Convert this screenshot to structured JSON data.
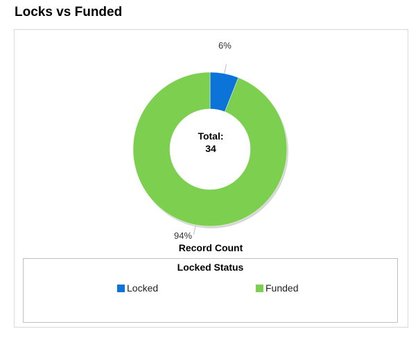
{
  "page": {
    "title": "Locks vs Funded"
  },
  "colors": {
    "locked": "#0c74d8",
    "funded": "#7ccf4f"
  },
  "chart_data": {
    "type": "pie",
    "subtype": "donut",
    "categories": [
      "Locked",
      "Funded"
    ],
    "values": [
      6,
      94
    ],
    "value_unit": "%",
    "data_labels": [
      "6%",
      "94%"
    ],
    "center_label": "Total:",
    "center_value": "34",
    "measure_label": "Record Count",
    "legend": {
      "title": "Locked Status",
      "position": "bottom",
      "entries": [
        "Locked",
        "Funded"
      ]
    }
  }
}
